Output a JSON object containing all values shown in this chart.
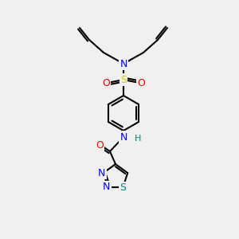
{
  "bg_color": "#f0f0f0",
  "atom_colors": {
    "C": "#000000",
    "N": "#0000ff",
    "O": "#ff0000",
    "S": "#cccc00",
    "S_thiadiazole": "#008080",
    "H": "#008080"
  },
  "bond_color": "#000000",
  "figsize": [
    3.0,
    3.0
  ],
  "dpi": 100
}
